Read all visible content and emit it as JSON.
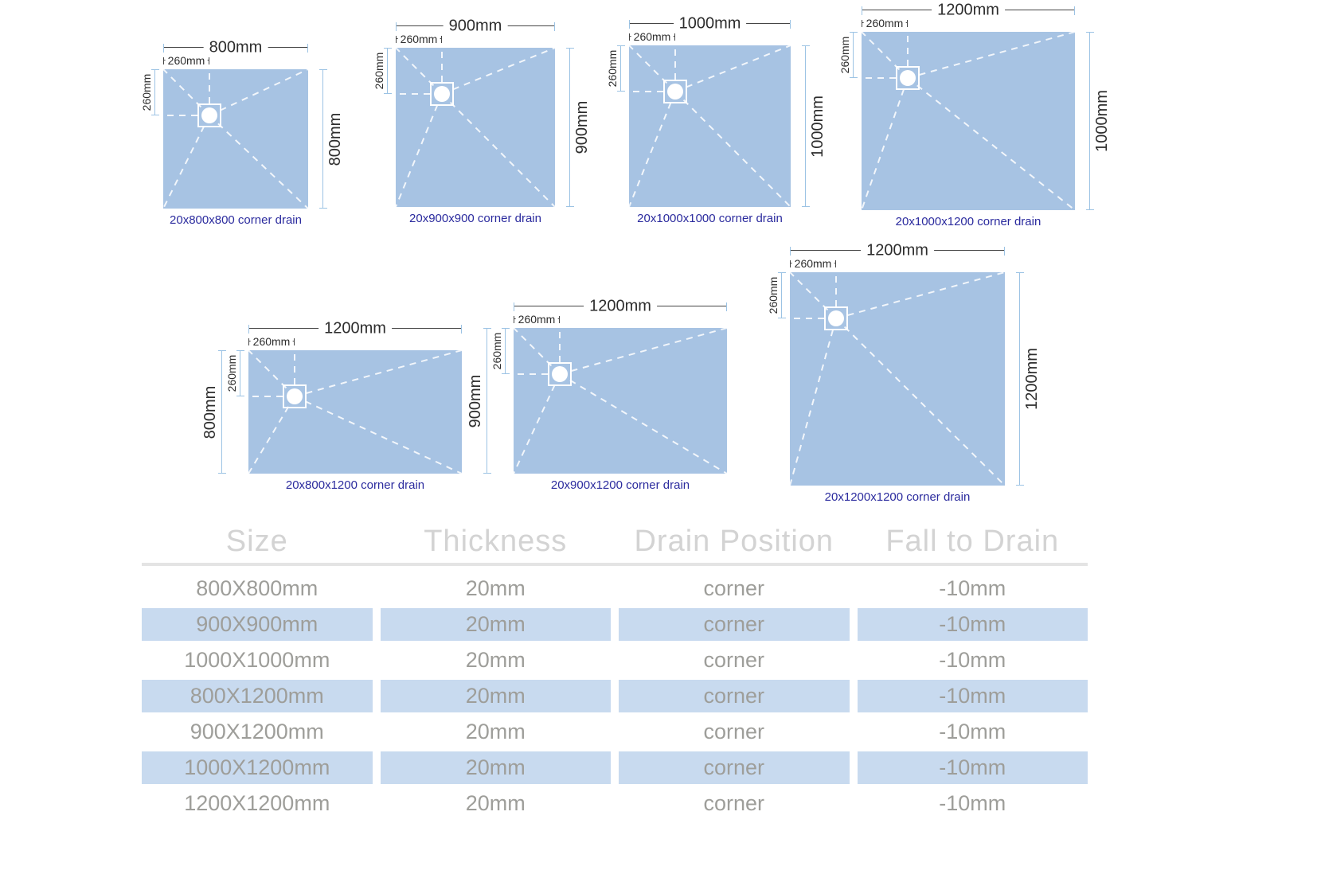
{
  "diagrams": [
    {
      "width_label": "800mm",
      "height_label": "800mm",
      "offset_h": "260mm",
      "offset_v": "260mm",
      "caption": "20x800x800 corner drain"
    },
    {
      "width_label": "900mm",
      "height_label": "900mm",
      "offset_h": "260mm",
      "offset_v": "260mm",
      "caption": "20x900x900 corner drain"
    },
    {
      "width_label": "1000mm",
      "height_label": "1000mm",
      "offset_h": "260mm",
      "offset_v": "260mm",
      "caption": "20x1000x1000 corner drain"
    },
    {
      "width_label": "1200mm",
      "height_label": "1000mm",
      "offset_h": "260mm",
      "offset_v": "260mm",
      "caption": "20x1000x1200 corner drain"
    },
    {
      "width_label": "1200mm",
      "height_label": "800mm",
      "offset_h": "260mm",
      "offset_v": "260mm",
      "caption": "20x800x1200 corner drain"
    },
    {
      "width_label": "1200mm",
      "height_label": "900mm",
      "offset_h": "260mm",
      "offset_v": "260mm",
      "caption": "20x900x1200 corner drain"
    },
    {
      "width_label": "1200mm",
      "height_label": "1200mm",
      "offset_h": "260mm",
      "offset_v": "260mm",
      "caption": "20x1200x1200 corner drain"
    }
  ],
  "table": {
    "headers": [
      "Size",
      "Thickness",
      "Drain Position",
      "Fall to Drain"
    ],
    "rows": [
      {
        "cells": [
          "800X800mm",
          "20mm",
          "corner",
          "-10mm"
        ]
      },
      {
        "cells": [
          "900X900mm",
          "20mm",
          "corner",
          "-10mm"
        ]
      },
      {
        "cells": [
          "1000X1000mm",
          "20mm",
          "corner",
          "-10mm"
        ]
      },
      {
        "cells": [
          "800X1200mm",
          "20mm",
          "corner",
          "-10mm"
        ]
      },
      {
        "cells": [
          "900X1200mm",
          "20mm",
          "corner",
          "-10mm"
        ]
      },
      {
        "cells": [
          "1000X1200mm",
          "20mm",
          "corner",
          "-10mm"
        ]
      },
      {
        "cells": [
          "1200X1200mm",
          "20mm",
          "corner",
          "-10mm"
        ]
      }
    ]
  },
  "colors": {
    "tray_fill": "#a7c3e3",
    "dim_line_blue": "#9cc3e4",
    "dim_line_dark": "#454545",
    "caption_navy": "#2b2b9e",
    "header_gray": "#d3d3d3",
    "row_text_gray": "#9e9e9a",
    "row_highlight": "#c8daef"
  }
}
